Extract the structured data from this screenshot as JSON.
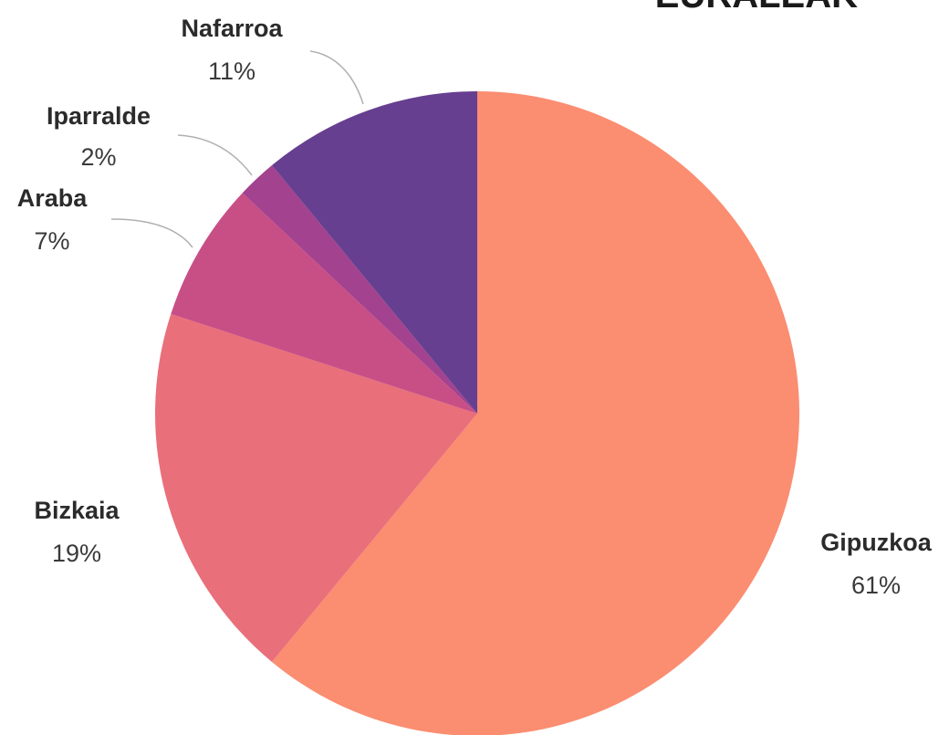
{
  "chart_data": {
    "type": "pie",
    "title": "EURALEAK",
    "start_angle_deg": 0,
    "direction": "clockwise",
    "legend": "none",
    "slices": [
      {
        "label": "Gipuzkoa",
        "value": 61,
        "display": "61%",
        "color": "#fb8d71"
      },
      {
        "label": "Bizkaia",
        "value": 19,
        "display": "19%",
        "color": "#e96f7a"
      },
      {
        "label": "Araba",
        "value": 7,
        "display": "7%",
        "color": "#c84f86"
      },
      {
        "label": "Iparralde",
        "value": 2,
        "display": "2%",
        "color": "#a3428e"
      },
      {
        "label": "Nafarroa",
        "value": 11,
        "display": "11%",
        "color": "#663f90"
      }
    ]
  }
}
